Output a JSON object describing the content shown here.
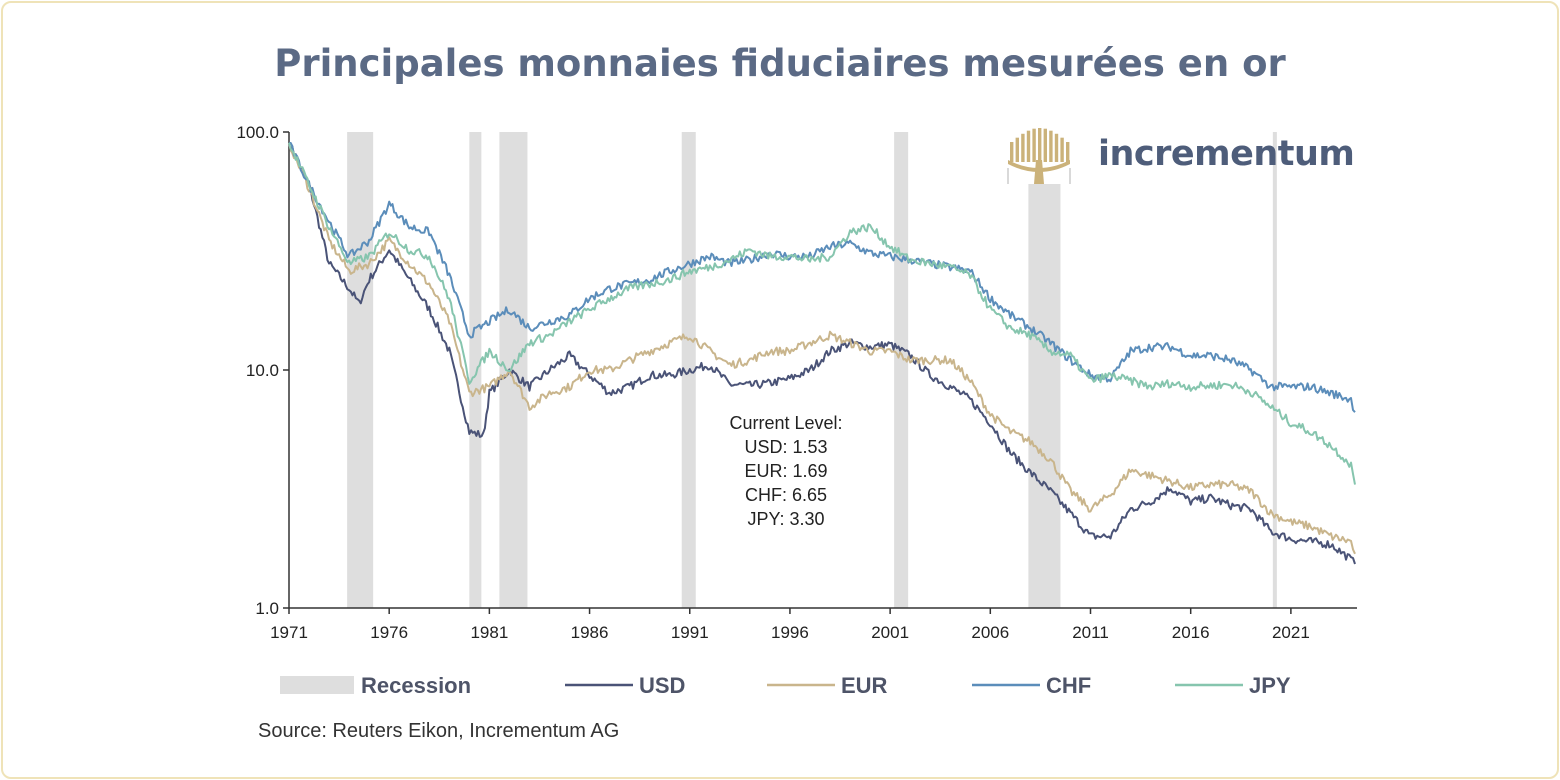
{
  "title": "Principales monnaies fiduciaires mesurées en or",
  "source": "Source: Reuters Eikon, Incrementum AG",
  "brand": {
    "name": "incrementum",
    "logo_icon": "tree-logo-icon",
    "color": "#4e5d7a",
    "logo_color": "#cbb27a"
  },
  "annotation": [
    "Current Level:",
    "USD: 1.53",
    "EUR: 1.69",
    "CHF: 6.65",
    "JPY: 3.30"
  ],
  "chart_data": {
    "type": "line",
    "y_scale": "log",
    "ylim": [
      1,
      100
    ],
    "y_ticks": [
      "1.0",
      "10.0",
      "100.0"
    ],
    "xlim": [
      1971,
      2024.2
    ],
    "x_ticks": [
      "1971",
      "1976",
      "1981",
      "1986",
      "1991",
      "1996",
      "2001",
      "2006",
      "2011",
      "2016",
      "2021"
    ],
    "grid": false,
    "legend_position": "bottom",
    "recessions": [
      [
        1973.9,
        1975.2
      ],
      [
        1980.0,
        1980.6
      ],
      [
        1981.5,
        1982.9
      ],
      [
        1990.6,
        1991.3
      ],
      [
        2001.2,
        2001.9
      ],
      [
        2007.9,
        2009.5
      ],
      [
        2020.1,
        2020.3
      ]
    ],
    "legend": [
      {
        "name": "Recession",
        "color": "#dedede",
        "kind": "area"
      },
      {
        "name": "USD",
        "color": "#4a5377",
        "kind": "line"
      },
      {
        "name": "EUR",
        "color": "#c9b58c",
        "kind": "line"
      },
      {
        "name": "CHF",
        "color": "#5b8dba",
        "kind": "line"
      },
      {
        "name": "JPY",
        "color": "#86c5ae",
        "kind": "line"
      }
    ],
    "series": [
      {
        "name": "USD",
        "color": "#4a5377",
        "x": [
          1971,
          1972,
          1973,
          1974,
          1974.5,
          1975,
          1976,
          1977,
          1978,
          1979,
          1980,
          1980.7,
          1981,
          1982,
          1983,
          1984,
          1985,
          1986,
          1987,
          1988,
          1989,
          1990,
          1991,
          1992,
          1993,
          1994,
          1995,
          1996,
          1997,
          1998,
          1999,
          2000,
          2001,
          2002,
          2003,
          2004,
          2005,
          2006,
          2007,
          2008,
          2009,
          2010,
          2011,
          2012,
          2013,
          2014,
          2015,
          2016,
          2017,
          2018,
          2019,
          2020,
          2021,
          2022,
          2023,
          2024,
          2024.2
        ],
        "values": [
          90,
          60,
          28,
          22,
          19,
          24,
          32,
          24,
          18,
          12,
          5.5,
          5.3,
          8,
          10,
          8.5,
          10,
          11.5,
          9.5,
          8,
          8.5,
          9.5,
          9.5,
          10,
          10.5,
          8.7,
          8.6,
          8.8,
          9.2,
          10,
          12,
          13,
          12.5,
          12.8,
          11.5,
          9.5,
          8.5,
          7.5,
          6,
          4.5,
          3.7,
          3.1,
          2.5,
          2.0,
          2.0,
          2.6,
          2.8,
          3.2,
          2.8,
          2.9,
          2.7,
          2.6,
          2.1,
          1.95,
          1.9,
          1.85,
          1.6,
          1.53
        ]
      },
      {
        "name": "EUR",
        "color": "#c9b58c",
        "x": [
          1971,
          1972,
          1973,
          1974,
          1975,
          1976,
          1977,
          1978,
          1979,
          1980,
          1981,
          1982,
          1983,
          1984,
          1985,
          1986,
          1987,
          1988,
          1989,
          1990,
          1991,
          1992,
          1993,
          1994,
          1995,
          1996,
          1997,
          1998,
          1999,
          2000,
          2001,
          2002,
          2003,
          2004,
          2005,
          2006,
          2007,
          2008,
          2009,
          2010,
          2011,
          2012,
          2013,
          2014,
          2015,
          2016,
          2017,
          2018,
          2019,
          2020,
          2021,
          2022,
          2023,
          2024,
          2024.2
        ],
        "values": [
          90,
          58,
          35,
          26,
          28,
          35,
          28,
          23,
          16,
          8,
          8.5,
          10,
          7,
          8,
          8.5,
          10,
          10,
          11,
          12,
          13,
          14,
          12,
          10.5,
          11,
          12,
          12,
          13,
          14,
          13,
          12,
          12,
          11,
          11,
          11,
          9,
          6.5,
          5.5,
          5,
          4.2,
          3.1,
          2.6,
          3.0,
          3.8,
          3.6,
          3.4,
          3.2,
          3.3,
          3.3,
          3.1,
          2.5,
          2.3,
          2.2,
          2.0,
          1.9,
          1.69
        ]
      },
      {
        "name": "CHF",
        "color": "#5b8dba",
        "x": [
          1971,
          1972,
          1973,
          1974,
          1975,
          1976,
          1977,
          1978,
          1979,
          1980,
          1981,
          1982,
          1983,
          1984,
          1985,
          1986,
          1987,
          1988,
          1989,
          1990,
          1991,
          1992,
          1993,
          1994,
          1995,
          1996,
          1997,
          1998,
          1999,
          2000,
          2001,
          2002,
          2003,
          2004,
          2005,
          2006,
          2007,
          2008,
          2009,
          2010,
          2011,
          2012,
          2013,
          2014,
          2015,
          2016,
          2017,
          2018,
          2019,
          2020,
          2021,
          2022,
          2023,
          2024,
          2024.2
        ],
        "values": [
          90,
          60,
          42,
          30,
          35,
          50,
          40,
          38,
          25,
          14,
          16,
          18,
          15,
          16,
          17,
          20,
          22,
          23,
          24,
          26,
          28,
          30,
          28,
          29,
          31,
          30,
          30,
          33,
          34,
          31,
          30,
          29,
          28,
          27,
          26,
          20,
          17,
          15,
          13,
          11,
          9.5,
          9.2,
          12,
          12.5,
          12.5,
          11.5,
          11.5,
          11,
          10,
          8.5,
          8.5,
          8.5,
          8,
          7.5,
          6.65
        ]
      },
      {
        "name": "JPY",
        "color": "#86c5ae",
        "x": [
          1971,
          1972,
          1973,
          1974,
          1975,
          1976,
          1977,
          1978,
          1979,
          1980,
          1981,
          1982,
          1983,
          1984,
          1985,
          1986,
          1987,
          1988,
          1989,
          1990,
          1991,
          1992,
          1993,
          1994,
          1995,
          1996,
          1997,
          1998,
          1999,
          2000,
          2001,
          2002,
          2003,
          2004,
          2005,
          2006,
          2007,
          2008,
          2009,
          2010,
          2011,
          2012,
          2013,
          2014,
          2015,
          2016,
          2017,
          2018,
          2019,
          2020,
          2021,
          2022,
          2023,
          2024,
          2024.2
        ],
        "values": [
          90,
          60,
          40,
          28,
          30,
          38,
          32,
          30,
          20,
          9,
          12,
          10,
          13,
          14,
          16,
          18,
          20,
          22,
          23,
          24,
          26,
          27,
          29,
          32,
          30,
          30,
          29,
          30,
          38,
          40,
          33,
          29,
          28,
          27,
          25,
          18,
          15,
          14,
          12,
          11.5,
          9,
          9.5,
          9,
          8.5,
          8.8,
          8.5,
          8.6,
          8.7,
          8.1,
          7,
          6,
          5.5,
          4.8,
          4.0,
          3.3
        ]
      }
    ]
  }
}
